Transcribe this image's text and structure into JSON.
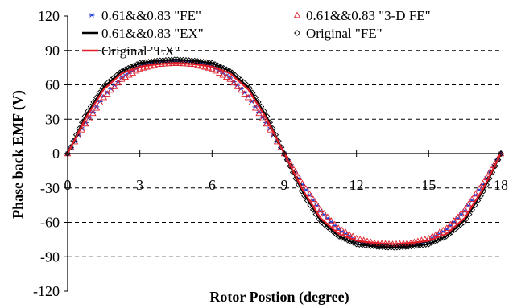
{
  "chart_data": {
    "type": "scatter",
    "xlabel": "Rotor Postion (degree)",
    "ylabel": "Phase back EMF (V)",
    "xlim": [
      0,
      18
    ],
    "ylim": [
      -120,
      120
    ],
    "x_ticks": [
      "0",
      "3",
      "6",
      "9",
      "12",
      "15",
      "18"
    ],
    "y_ticks": [
      "120",
      "90",
      "60",
      "30",
      "0",
      "-30",
      "-60",
      "-90",
      "-120"
    ],
    "grid": "horizontal dashed at 90, 60, 30, -30, -60, -90",
    "legend_position": "top",
    "series": [
      {
        "name": "0.61&&0.83 \"FE\"",
        "style": "markers",
        "marker": "asterisk",
        "color": "#1f3fd6",
        "x": [
          0,
          0.75,
          1.5,
          2.25,
          3,
          3.75,
          4.5,
          5.25,
          6,
          6.75,
          7.5,
          8.25,
          9,
          9.75,
          10.5,
          11.25,
          12,
          12.75,
          13.5,
          14.25,
          15,
          15.75,
          16.5,
          17.25,
          18
        ],
        "y": [
          0,
          27,
          50,
          66,
          76,
          80,
          81,
          80,
          76,
          66,
          50,
          27,
          0,
          -27,
          -50,
          -66,
          -76,
          -80,
          -81,
          -80,
          -76,
          -66,
          -50,
          -27,
          0
        ]
      },
      {
        "name": "0.61&&0.83 \"3-D FE\"",
        "style": "markers",
        "marker": "triangle",
        "color": "#e0202a",
        "x": [
          0,
          0.75,
          1.5,
          2.25,
          3,
          3.75,
          4.5,
          5.25,
          6,
          6.75,
          7.5,
          8.25,
          9,
          9.75,
          10.5,
          11.25,
          12,
          12.75,
          13.5,
          14.25,
          15,
          15.75,
          16.5,
          17.25,
          18
        ],
        "y": [
          0,
          26,
          49,
          65,
          74,
          78,
          79,
          78,
          74,
          65,
          49,
          26,
          0,
          -26,
          -49,
          -65,
          -74,
          -78,
          -79,
          -78,
          -74,
          -65,
          -49,
          -26,
          0
        ]
      },
      {
        "name": "0.61&&0.83 \"EX\"",
        "style": "line",
        "color": "#000000",
        "x": [
          0,
          0.75,
          1.5,
          2.25,
          3,
          3.75,
          4.5,
          5.25,
          6,
          6.75,
          7.5,
          8.25,
          9,
          9.75,
          10.5,
          11.25,
          12,
          12.75,
          13.5,
          14.25,
          15,
          15.75,
          16.5,
          17.25,
          18
        ],
        "y": [
          0,
          33,
          58,
          72,
          79,
          81,
          82,
          81,
          79,
          72,
          58,
          33,
          0,
          -33,
          -58,
          -72,
          -79,
          -81,
          -82,
          -81,
          -79,
          -72,
          -58,
          -33,
          0
        ]
      },
      {
        "name": "Original \"FE\"",
        "style": "markers",
        "marker": "diamond",
        "color": "#000000",
        "x": [
          0,
          0.75,
          1.5,
          2.25,
          3,
          3.75,
          4.5,
          5.25,
          6,
          6.75,
          7.5,
          8.25,
          9,
          9.75,
          10.5,
          11.25,
          12,
          12.75,
          13.5,
          14.25,
          15,
          15.75,
          16.5,
          17.25,
          18
        ],
        "y": [
          0,
          34,
          59,
          72,
          79,
          81,
          82,
          81,
          79,
          72,
          59,
          34,
          0,
          -34,
          -59,
          -72,
          -79,
          -81,
          -82,
          -81,
          -79,
          -72,
          -59,
          -34,
          0
        ]
      },
      {
        "name": "Original \"EX\"",
        "style": "line",
        "color": "#e0202a",
        "x": [
          0,
          0.75,
          1.5,
          2.25,
          3,
          3.75,
          4.5,
          5.25,
          6,
          6.75,
          7.5,
          8.25,
          9,
          9.75,
          10.5,
          11.25,
          12,
          12.75,
          13.5,
          14.25,
          15,
          15.75,
          16.5,
          17.25,
          18
        ],
        "y": [
          0,
          31,
          56,
          70,
          76,
          78,
          79,
          78,
          76,
          70,
          56,
          31,
          0,
          -31,
          -56,
          -70,
          -76,
          -78,
          -79,
          -78,
          -76,
          -70,
          -56,
          -31,
          0
        ]
      }
    ]
  }
}
